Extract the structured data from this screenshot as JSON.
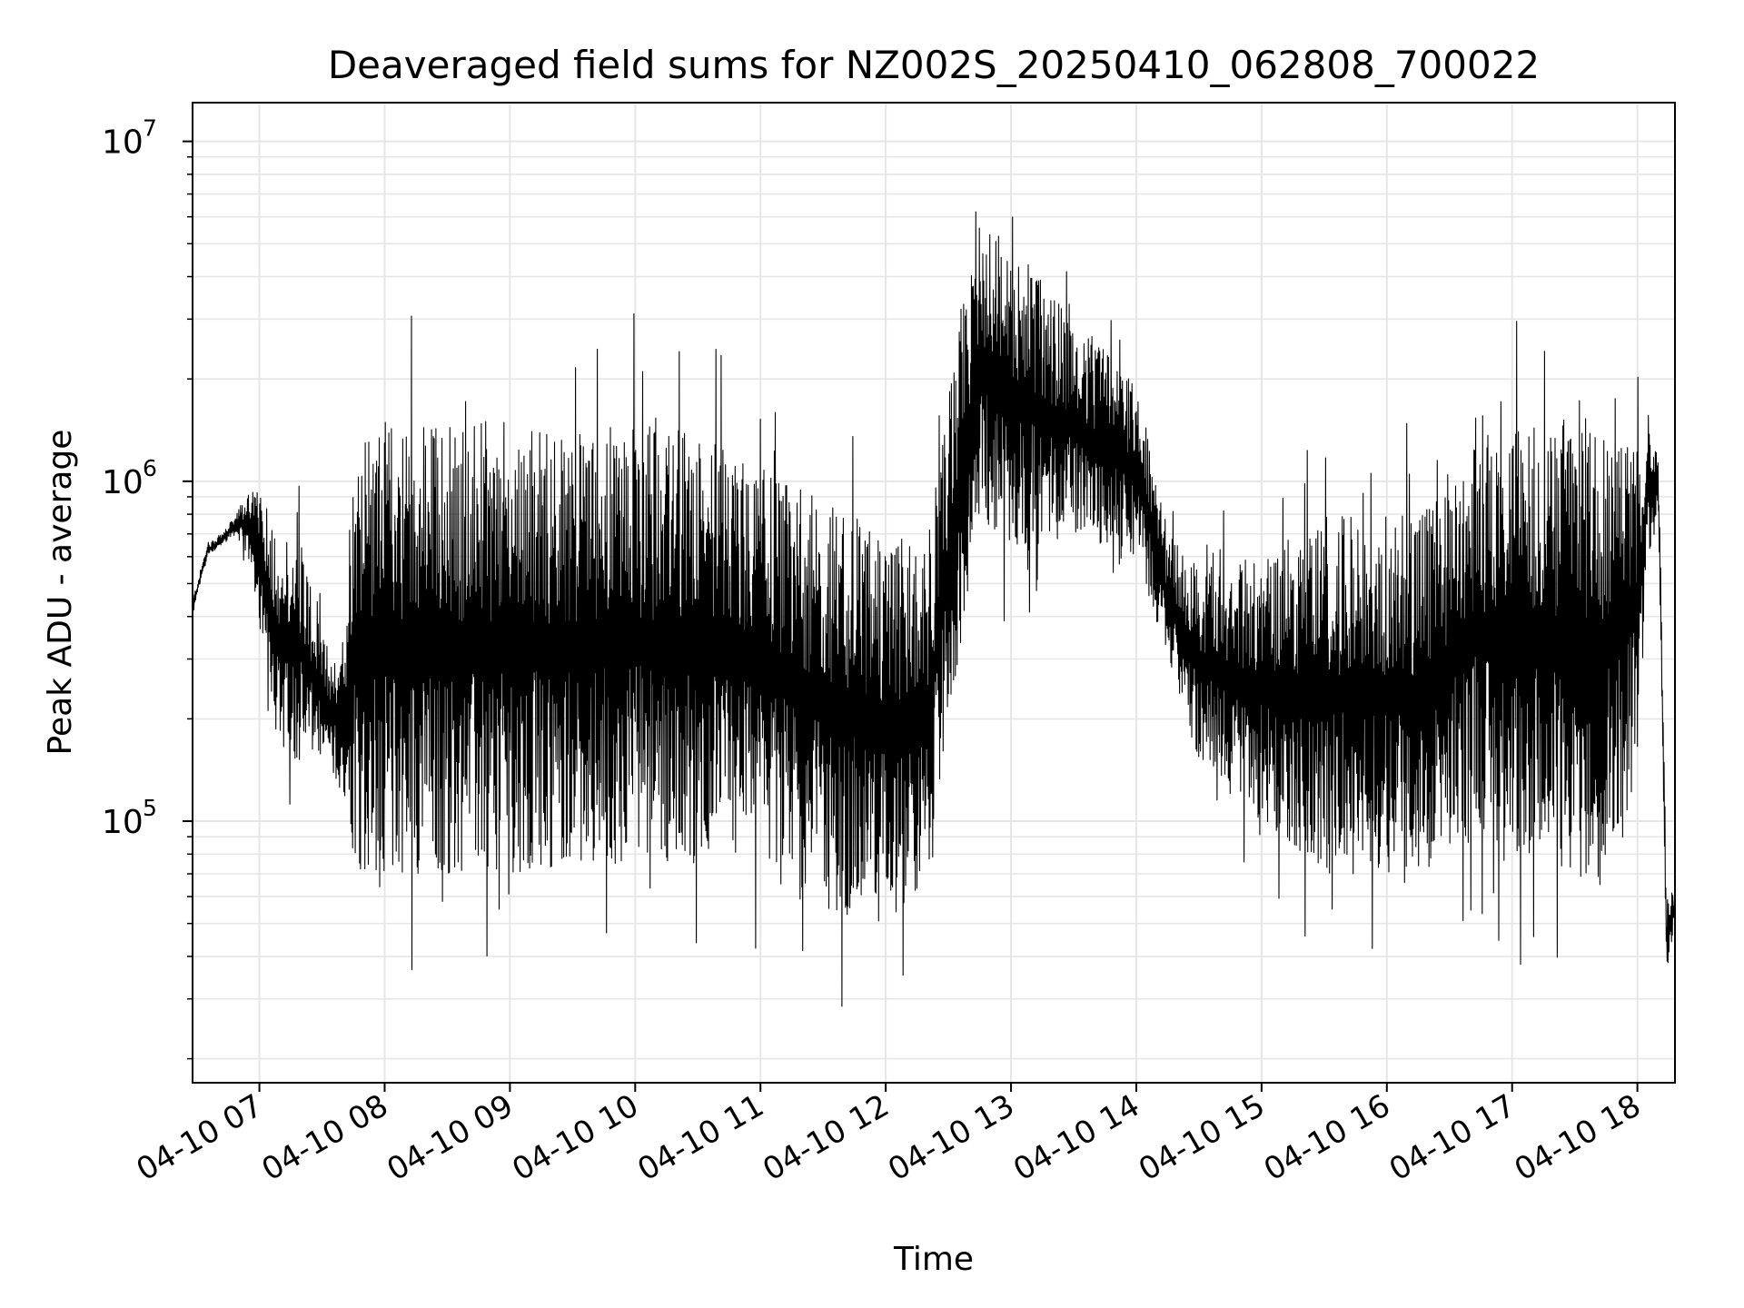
{
  "chart_data": {
    "type": "line",
    "title": "Deaveraged field sums for NZ002S_20250410_062808_700022",
    "xlabel": "Time",
    "ylabel": "Peak ADU - average",
    "yscale": "log",
    "ylim": [
      17000,
      13000000
    ],
    "xlim": [
      "2025-04-10 06:28",
      "2025-04-10 18:18"
    ],
    "grid": true,
    "line_color": "#000000",
    "x_tick_labels": [
      "04-10 07",
      "04-10 08",
      "04-10 09",
      "04-10 10",
      "04-10 11",
      "04-10 12",
      "04-10 13",
      "04-10 14",
      "04-10 15",
      "04-10 16",
      "04-10 17",
      "04-10 18"
    ],
    "y_ticks": [
      {
        "value": 100000,
        "base": "10",
        "exp": "5"
      },
      {
        "value": 1000000,
        "base": "10",
        "exp": "6"
      },
      {
        "value": 10000000,
        "base": "10",
        "exp": "7"
      }
    ],
    "series": [
      {
        "name": "",
        "x": [
          "2025-04-10 06:28",
          "2025-04-10 06:35",
          "2025-04-10 06:42",
          "2025-04-10 06:49",
          "2025-04-10 06:56",
          "2025-04-10 07:03",
          "2025-04-10 07:10",
          "2025-04-10 07:20",
          "2025-04-10 07:30",
          "2025-04-10 07:40",
          "2025-04-10 07:45",
          "2025-04-10 07:50",
          "2025-04-10 08:00",
          "2025-04-10 08:30",
          "2025-04-10 09:00",
          "2025-04-10 09:30",
          "2025-04-10 10:00",
          "2025-04-10 10:30",
          "2025-04-10 11:00",
          "2025-04-10 11:30",
          "2025-04-10 12:00",
          "2025-04-10 12:20",
          "2025-04-10 12:35",
          "2025-04-10 12:45",
          "2025-04-10 13:00",
          "2025-04-10 13:30",
          "2025-04-10 14:00",
          "2025-04-10 14:15",
          "2025-04-10 14:30",
          "2025-04-10 15:00",
          "2025-04-10 15:30",
          "2025-04-10 16:00",
          "2025-04-10 16:20",
          "2025-04-10 16:40",
          "2025-04-10 17:00",
          "2025-04-10 17:30",
          "2025-04-10 17:45",
          "2025-04-10 18:00",
          "2025-04-10 18:05",
          "2025-04-10 18:10",
          "2025-04-10 18:14",
          "2025-04-10 18:18"
        ],
        "y_high": [
          450000,
          650000,
          700000,
          800000,
          1000000,
          850000,
          700000,
          700000,
          350000,
          300000,
          1400000,
          1500000,
          1500000,
          1500000,
          1500000,
          1400000,
          1500000,
          1400000,
          1100000,
          900000,
          700000,
          650000,
          3000000,
          6000000,
          5000000,
          3000000,
          2000000,
          700000,
          550000,
          600000,
          800000,
          800000,
          900000,
          1300000,
          1500000,
          1600000,
          1500000,
          1300000,
          1600000,
          1300000,
          60000,
          65000
        ],
        "y_low": [
          400000,
          600000,
          650000,
          700000,
          550000,
          300000,
          150000,
          150000,
          150000,
          120000,
          80000,
          70000,
          70000,
          70000,
          70000,
          75000,
          75000,
          75000,
          80000,
          55000,
          50000,
          60000,
          300000,
          800000,
          600000,
          700000,
          600000,
          300000,
          150000,
          100000,
          70000,
          70000,
          60000,
          100000,
          80000,
          65000,
          70000,
          150000,
          550000,
          800000,
          35000,
          50000
        ]
      }
    ]
  }
}
